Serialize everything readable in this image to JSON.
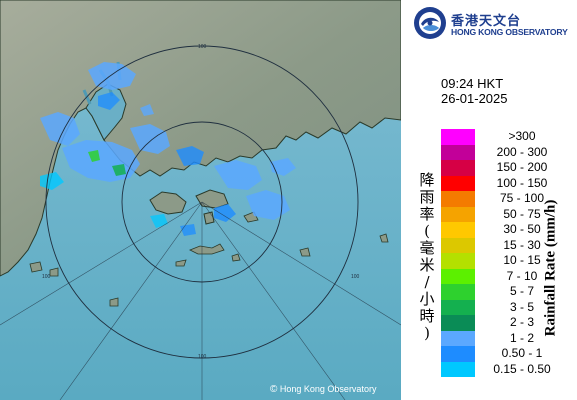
{
  "logo": {
    "name_cn": "香港天文台",
    "name_en": "HONG KONG OBSERVATORY",
    "brand_color": "#1f3f8f",
    "icon": "hko-logo-icon"
  },
  "timestamp": {
    "time": "09:24 HKT",
    "date": "26-01-2025"
  },
  "legend": {
    "title_en": "Rainfall Rate (mm/h)",
    "title_cn": [
      "降",
      "雨",
      "率",
      "(",
      "毫",
      "米",
      "/",
      "小",
      "時",
      ")"
    ],
    "items": [
      {
        "label": ">300",
        "color": "#ff00ff"
      },
      {
        "label": "200 - 300",
        "color": "#c20099"
      },
      {
        "label": "150 - 200",
        "color": "#d60045"
      },
      {
        "label": "100 - 150",
        "color": "#ff0000"
      },
      {
        "label": "75 - 100",
        "color": "#f47b00"
      },
      {
        "label": "50 - 75",
        "color": "#f5a300"
      },
      {
        "label": "30 - 50",
        "color": "#ffc800"
      },
      {
        "label": "15 - 30",
        "color": "#dcc800"
      },
      {
        "label": "10 - 15",
        "color": "#b4e000"
      },
      {
        "label": "7 - 10",
        "color": "#5cf000"
      },
      {
        "label": "5 - 7",
        "color": "#2ed12e"
      },
      {
        "label": "3 - 5",
        "color": "#14b04f"
      },
      {
        "label": "2 - 3",
        "color": "#0a8c56"
      },
      {
        "label": "1 - 2",
        "color": "#5ba8ff"
      },
      {
        "label": "0.50 - 1",
        "color": "#1e8cff"
      },
      {
        "label": "0.15 - 0.50",
        "color": "#00c8ff"
      }
    ]
  },
  "map": {
    "range_labels": [
      "100",
      "100",
      "100",
      "100"
    ],
    "copyright": "Hong Kong Observatory",
    "copyright_symbol": "©",
    "sea_color": "#6fb3c9",
    "land_color": "#8a9a88"
  }
}
